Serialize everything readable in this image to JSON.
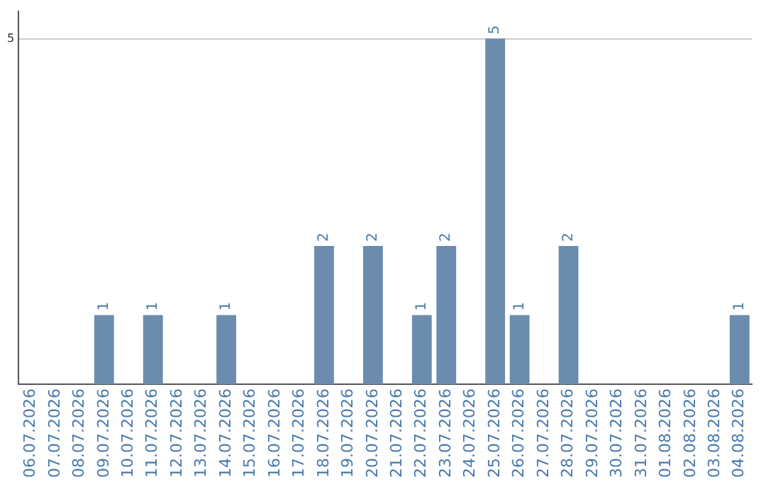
{
  "chart_data": {
    "type": "bar",
    "categories": [
      "06.07.2026",
      "07.07.2026",
      "08.07.2026",
      "09.07.2026",
      "10.07.2026",
      "11.07.2026",
      "12.07.2026",
      "13.07.2026",
      "14.07.2026",
      "15.07.2026",
      "16.07.2026",
      "17.07.2026",
      "18.07.2026",
      "19.07.2026",
      "20.07.2026",
      "21.07.2026",
      "22.07.2026",
      "23.07.2026",
      "24.07.2026",
      "25.07.2026",
      "26.07.2026",
      "27.07.2026",
      "28.07.2026",
      "29.07.2026",
      "30.07.2026",
      "31.07.2026",
      "01.08.2026",
      "02.08.2026",
      "03.08.2026",
      "04.08.2026"
    ],
    "values": [
      0,
      0,
      0,
      1,
      0,
      1,
      0,
      0,
      1,
      0,
      0,
      0,
      2,
      0,
      2,
      0,
      1,
      2,
      0,
      5,
      1,
      0,
      2,
      0,
      0,
      0,
      0,
      0,
      0,
      1
    ],
    "value_labels": [
      null,
      null,
      null,
      "1",
      null,
      "1",
      null,
      null,
      "1",
      null,
      null,
      null,
      "2",
      null,
      "2",
      null,
      "1",
      "2",
      null,
      "5",
      "1",
      null,
      "2",
      null,
      null,
      null,
      null,
      null,
      null,
      "1"
    ],
    "color": "#6b8cac",
    "ylim": [
      0,
      5.4
    ],
    "yticks": [
      5
    ],
    "grid": "y",
    "legend": false
  }
}
